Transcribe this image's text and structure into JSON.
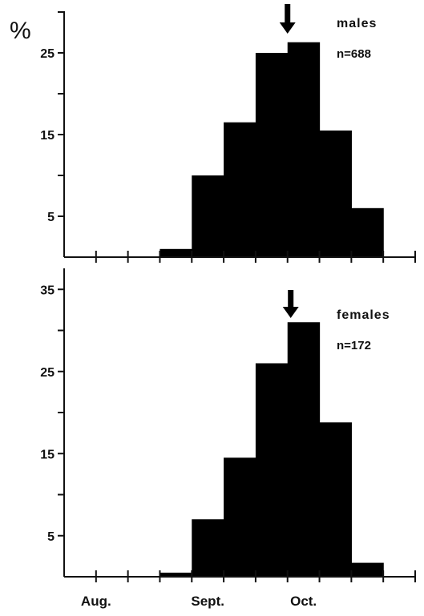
{
  "chart_data": [
    {
      "type": "bar",
      "panel_label": "males",
      "n_label": "n=688",
      "y_unit_label": "%",
      "y_ticks": [
        5,
        15,
        25
      ],
      "ylim": [
        0,
        30
      ],
      "bins": [
        {
          "start": 3,
          "end": 4,
          "value": 1
        },
        {
          "start": 4,
          "end": 5,
          "value": 10
        },
        {
          "start": 5,
          "end": 6,
          "value": 16.5
        },
        {
          "start": 6,
          "end": 7,
          "value": 25
        },
        {
          "start": 7,
          "end": 8,
          "value": 26.3
        },
        {
          "start": 8,
          "end": 9,
          "value": 15.5
        },
        {
          "start": 9,
          "end": 10,
          "value": 6
        }
      ],
      "arrow_position": 7
    },
    {
      "type": "bar",
      "panel_label": "females",
      "n_label": "n=172",
      "y_ticks": [
        5,
        15,
        25,
        35
      ],
      "ylim": [
        0,
        36
      ],
      "bins": [
        {
          "start": 3,
          "end": 4,
          "value": 0.5
        },
        {
          "start": 4,
          "end": 5,
          "value": 7
        },
        {
          "start": 5,
          "end": 6,
          "value": 14.5
        },
        {
          "start": 6,
          "end": 7,
          "value": 26
        },
        {
          "start": 7,
          "end": 8,
          "value": 31
        },
        {
          "start": 8,
          "end": 9,
          "value": 18.8
        },
        {
          "start": 9,
          "end": 10,
          "value": 1.7
        }
      ],
      "arrow_position": 7.1
    }
  ],
  "x_axis": {
    "range": [
      0,
      11
    ],
    "ticks": [
      1,
      2,
      3,
      4,
      5,
      6,
      7,
      8,
      9,
      10,
      11
    ],
    "month_labels": [
      {
        "label": "Aug.",
        "position": 1
      },
      {
        "label": "Sept.",
        "position": 4.5
      },
      {
        "label": "Oct.",
        "position": 7.5
      }
    ]
  },
  "colors": {
    "bar": "#000000",
    "axis": "#111111"
  }
}
